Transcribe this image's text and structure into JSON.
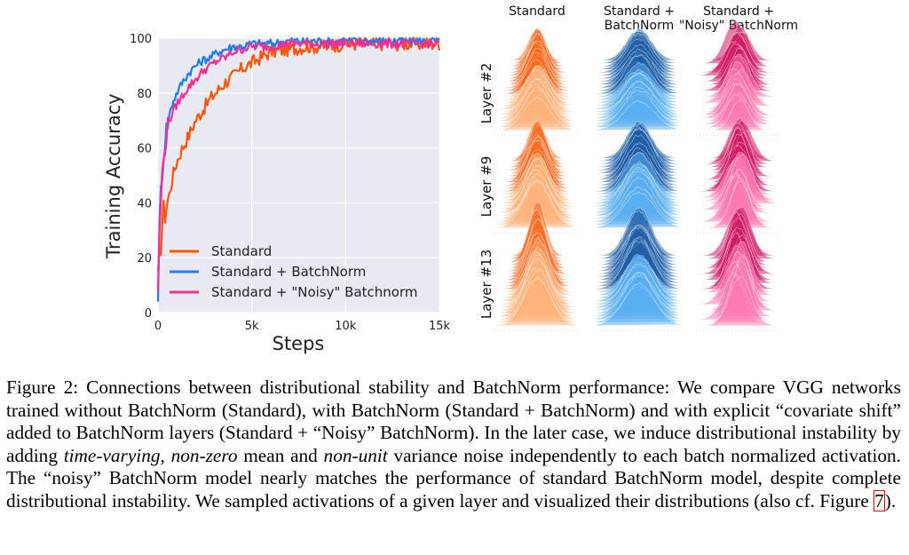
{
  "chart_data": [
    {
      "type": "line",
      "xlabel": "Steps",
      "ylabel": "Training Accuracy",
      "xlim": [
        0,
        15000
      ],
      "ylim": [
        0,
        100
      ],
      "xticks": [
        0,
        5000,
        10000,
        15000
      ],
      "xtick_labels": [
        "0",
        "5k",
        "10k",
        "15k"
      ],
      "yticks": [
        0,
        20,
        40,
        60,
        80,
        100
      ],
      "ytick_labels": [
        "0",
        "20",
        "40",
        "60",
        "80",
        "100"
      ],
      "grid": true,
      "legend_position": "lower-right",
      "series": [
        {
          "name": "Standard",
          "color": "#ff5500",
          "x": [
            0,
            100,
            200,
            400,
            600,
            800,
            1000,
            1300,
            1600,
            2000,
            2400,
            2800,
            3200,
            3600,
            4000,
            4500,
            5000,
            5500,
            6000,
            7000,
            8000,
            9000,
            10000,
            11000,
            12000,
            13000,
            14000,
            15000
          ],
          "y": [
            10,
            20,
            33,
            38,
            43,
            50,
            55,
            60,
            64,
            70,
            74,
            78,
            81,
            84,
            86,
            89,
            91,
            93,
            95,
            96,
            97,
            97,
            98,
            98,
            98,
            98,
            98,
            98
          ]
        },
        {
          "name": "Standard + BatchNorm",
          "color": "#1e7cff",
          "x": [
            0,
            100,
            200,
            400,
            600,
            800,
            1000,
            1300,
            1600,
            2000,
            2400,
            2800,
            3200,
            3600,
            4000,
            4500,
            5000,
            6000,
            7000,
            8000,
            9000,
            10000,
            11000,
            12000,
            13000,
            14000,
            15000
          ],
          "y": [
            7,
            38,
            50,
            65,
            72,
            77,
            80,
            84,
            87,
            90,
            92,
            93,
            95,
            96,
            97,
            97,
            98,
            98,
            99,
            99,
            99,
            99,
            99,
            99,
            99,
            99,
            99
          ]
        },
        {
          "name": "Standard + \"Noisy\" Batchnorm",
          "color": "#ff2d91",
          "x": [
            0,
            100,
            200,
            400,
            600,
            800,
            1000,
            1300,
            1600,
            2000,
            2400,
            2800,
            3200,
            3600,
            4000,
            4500,
            5000,
            6000,
            7000,
            8000,
            9000,
            10000,
            11000,
            12000,
            13000,
            14000,
            15000
          ],
          "y": [
            9,
            33,
            48,
            63,
            70,
            73,
            76,
            79,
            82,
            85,
            88,
            90,
            92,
            93,
            95,
            96,
            97,
            97,
            98,
            98,
            98,
            98,
            98,
            98,
            98,
            98,
            98
          ]
        }
      ]
    },
    {
      "type": "heatmap",
      "description_kind": "ridgeline-distributions",
      "columns": [
        {
          "label": "Standard",
          "color": "#ff6a21",
          "color_light": "#ffb27a"
        },
        {
          "label": "Standard +\nBatchNorm",
          "color": "#1f5fa8",
          "color_light": "#5aaef0"
        },
        {
          "label": "Standard +\n\"Noisy\" BatchNorm",
          "color": "#cf1a63",
          "color_light": "#ff7ab0"
        }
      ],
      "rows": [
        "Layer #2",
        "Layer #9",
        "Layer #13"
      ]
    }
  ],
  "caption": {
    "part1": "Figure 2: Connections between distributional stability and BatchNorm performance: We compare VGG networks trained without BatchNorm (Standard), with BatchNorm (Standard + BatchNorm) and with explicit “covariate shift” added to BatchNorm layers (Standard + “Noisy” BatchNorm). In the later case, we induce distributional instability by adding ",
    "em1": "time-varying",
    "sep1": ", ",
    "em2": "non-zero",
    "mid": " mean and ",
    "em3": "non-unit",
    "part2": " variance noise independently to each batch normalized activation. The “noisy” BatchNorm model nearly matches the performance of standard BatchNorm model, despite complete distributional instability. We sampled activations of a given layer and visualized their distributions (also cf. Figure ",
    "fig_ref": "7",
    "end": ")."
  }
}
